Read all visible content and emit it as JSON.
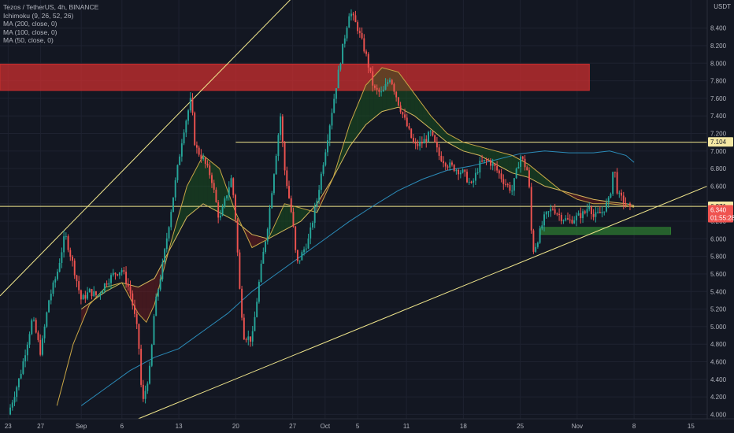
{
  "legend": {
    "symbol": "Tezos / TetherUS, 4h, BINANCE",
    "ichimoku": "Ichimoku (9, 26, 52, 26)",
    "ma200": "MA (200, close, 0)",
    "ma100": "MA (100, close, 0)",
    "ma50": "MA (50, close, 0)"
  },
  "currency": "USDT",
  "colors": {
    "background": "#131722",
    "up": "#26a69a",
    "down": "#ef5350",
    "resistance_zone": "#d32f2f",
    "support_zone": "#2e7d32",
    "trendline": "#f0e68c",
    "ma_blue": "#2b8bb8",
    "ma_gold": "#d4b85c"
  },
  "chart_data": {
    "type": "candlestick",
    "ylim": [
      3.95,
      8.72
    ],
    "y_ticks": [
      "8.400",
      "8.200",
      "8.000",
      "7.800",
      "7.600",
      "7.400",
      "7.200",
      "7.000",
      "6.800",
      "6.600",
      "6.400",
      "6.200",
      "6.000",
      "5.800",
      "5.600",
      "5.400",
      "5.200",
      "5.000",
      "4.800",
      "4.600",
      "4.400",
      "4.200",
      "4.000"
    ],
    "x_tick_labels": [
      {
        "label": "23",
        "t": 0
      },
      {
        "label": "27",
        "t": 4
      },
      {
        "label": "Sep",
        "t": 9
      },
      {
        "label": "6",
        "t": 14
      },
      {
        "label": "13",
        "t": 21
      },
      {
        "label": "20",
        "t": 28
      },
      {
        "label": "27",
        "t": 35
      },
      {
        "label": "Oct",
        "t": 39
      },
      {
        "label": "5",
        "t": 43
      },
      {
        "label": "11",
        "t": 49
      },
      {
        "label": "18",
        "t": 56
      },
      {
        "label": "25",
        "t": 63
      },
      {
        "label": "Nov",
        "t": 70
      },
      {
        "label": "8",
        "t": 77
      },
      {
        "label": "15",
        "t": 84
      }
    ],
    "close_path": [
      [
        0,
        4.0
      ],
      [
        1.5,
        4.45
      ],
      [
        3,
        5.1
      ],
      [
        4,
        4.7
      ],
      [
        5,
        5.3
      ],
      [
        6,
        5.6
      ],
      [
        7,
        6.05
      ],
      [
        8,
        5.7
      ],
      [
        9,
        5.3
      ],
      [
        10,
        5.4
      ],
      [
        11,
        5.35
      ],
      [
        12,
        5.5
      ],
      [
        13,
        5.6
      ],
      [
        14,
        5.65
      ],
      [
        15,
        5.4
      ],
      [
        16,
        4.9
      ],
      [
        16.5,
        4.1
      ],
      [
        17.5,
        4.55
      ],
      [
        18,
        5.2
      ],
      [
        19,
        5.7
      ],
      [
        20,
        6.3
      ],
      [
        21,
        6.9
      ],
      [
        21.5,
        7.2
      ],
      [
        22.5,
        7.6
      ],
      [
        23,
        7.05
      ],
      [
        24,
        6.9
      ],
      [
        25,
        6.7
      ],
      [
        26,
        6.2
      ],
      [
        27,
        6.55
      ],
      [
        27.5,
        6.7
      ],
      [
        28,
        6.2
      ],
      [
        28.5,
        5.4
      ],
      [
        29,
        4.9
      ],
      [
        30,
        4.85
      ],
      [
        31,
        5.6
      ],
      [
        32,
        6.2
      ],
      [
        33,
        7.0
      ],
      [
        33.5,
        7.4
      ],
      [
        34,
        6.8
      ],
      [
        34.5,
        6.5
      ],
      [
        35,
        6.2
      ],
      [
        35.5,
        5.7
      ],
      [
        36,
        5.8
      ],
      [
        37,
        6.0
      ],
      [
        38,
        6.45
      ],
      [
        39,
        7.0
      ],
      [
        40,
        7.55
      ],
      [
        41,
        8.1
      ],
      [
        42,
        8.6
      ],
      [
        43,
        8.4
      ],
      [
        44,
        8.1
      ],
      [
        45,
        7.7
      ],
      [
        46,
        7.65
      ],
      [
        47,
        7.85
      ],
      [
        48,
        7.55
      ],
      [
        49,
        7.3
      ],
      [
        50,
        7.05
      ],
      [
        51,
        7.1
      ],
      [
        52,
        7.2
      ],
      [
        53,
        6.95
      ],
      [
        54,
        6.85
      ],
      [
        55,
        6.8
      ],
      [
        56,
        6.75
      ],
      [
        57,
        6.6
      ],
      [
        58,
        6.85
      ],
      [
        59,
        6.9
      ],
      [
        60,
        6.8
      ],
      [
        61,
        6.65
      ],
      [
        62,
        6.55
      ],
      [
        63,
        6.95
      ],
      [
        64,
        6.75
      ],
      [
        64.5,
        5.85
      ],
      [
        65,
        5.95
      ],
      [
        66,
        6.25
      ],
      [
        67,
        6.35
      ],
      [
        68,
        6.25
      ],
      [
        69,
        6.2
      ],
      [
        70,
        6.25
      ],
      [
        71,
        6.3
      ],
      [
        71.5,
        6.4
      ],
      [
        72,
        6.25
      ],
      [
        73,
        6.3
      ],
      [
        74,
        6.45
      ],
      [
        74.5,
        6.85
      ],
      [
        75,
        6.5
      ],
      [
        76,
        6.4
      ],
      [
        76.5,
        6.34
      ]
    ],
    "moving_averages": [
      {
        "name": "MA (200, close, 0)",
        "color": "#2b8bb8",
        "points": [
          [
            9,
            4.1
          ],
          [
            12,
            4.3
          ],
          [
            15,
            4.5
          ],
          [
            18,
            4.65
          ],
          [
            21,
            4.75
          ],
          [
            24,
            4.95
          ],
          [
            27,
            5.15
          ],
          [
            30,
            5.4
          ],
          [
            33,
            5.6
          ],
          [
            36,
            5.8
          ],
          [
            39,
            6.0
          ],
          [
            42,
            6.2
          ],
          [
            45,
            6.38
          ],
          [
            48,
            6.55
          ],
          [
            51,
            6.68
          ],
          [
            54,
            6.78
          ],
          [
            57,
            6.83
          ],
          [
            60,
            6.9
          ],
          [
            63,
            6.97
          ],
          [
            66,
            7.0
          ],
          [
            69,
            6.98
          ],
          [
            72,
            6.98
          ],
          [
            74,
            7.0
          ],
          [
            76,
            6.95
          ],
          [
            77,
            6.87
          ]
        ]
      },
      {
        "name": "MA (100, close, 0)",
        "color": "#d4b85c",
        "points": [
          [
            9,
            5.2
          ],
          [
            12,
            5.4
          ],
          [
            14,
            5.5
          ],
          [
            16,
            5.45
          ],
          [
            18,
            5.55
          ],
          [
            20,
            5.9
          ],
          [
            22,
            6.25
          ],
          [
            24,
            6.4
          ],
          [
            26,
            6.3
          ],
          [
            28,
            6.2
          ],
          [
            30,
            6.05
          ],
          [
            32,
            6.0
          ],
          [
            34,
            6.1
          ],
          [
            36,
            6.2
          ],
          [
            38,
            6.4
          ],
          [
            40,
            6.7
          ],
          [
            42,
            7.05
          ],
          [
            44,
            7.3
          ],
          [
            46,
            7.45
          ],
          [
            48,
            7.5
          ],
          [
            50,
            7.4
          ],
          [
            52,
            7.25
          ],
          [
            54,
            7.1
          ],
          [
            56,
            7.0
          ],
          [
            58,
            6.95
          ],
          [
            60,
            6.85
          ],
          [
            62,
            6.75
          ],
          [
            64,
            6.7
          ],
          [
            66,
            6.6
          ],
          [
            68,
            6.55
          ],
          [
            70,
            6.5
          ],
          [
            72,
            6.45
          ],
          [
            74,
            6.42
          ],
          [
            76,
            6.4
          ],
          [
            77,
            6.38
          ]
        ]
      },
      {
        "name": "MA (50, close, 0)",
        "color": "#c9a646",
        "points": [
          [
            6,
            4.1
          ],
          [
            8,
            4.8
          ],
          [
            10,
            5.25
          ],
          [
            12,
            5.45
          ],
          [
            14,
            5.5
          ],
          [
            16,
            5.15
          ],
          [
            17,
            5.05
          ],
          [
            18,
            5.25
          ],
          [
            20,
            5.95
          ],
          [
            22,
            6.6
          ],
          [
            24,
            6.95
          ],
          [
            26,
            6.8
          ],
          [
            28,
            6.3
          ],
          [
            30,
            5.9
          ],
          [
            32,
            6.0
          ],
          [
            34,
            6.4
          ],
          [
            36,
            6.35
          ],
          [
            38,
            6.3
          ],
          [
            40,
            6.7
          ],
          [
            42,
            7.3
          ],
          [
            44,
            7.75
          ],
          [
            46,
            7.95
          ],
          [
            48,
            7.9
          ],
          [
            50,
            7.65
          ],
          [
            52,
            7.4
          ],
          [
            54,
            7.2
          ],
          [
            56,
            7.1
          ],
          [
            58,
            7.05
          ],
          [
            60,
            7.0
          ],
          [
            62,
            6.95
          ],
          [
            64,
            6.85
          ],
          [
            66,
            6.7
          ],
          [
            68,
            6.55
          ],
          [
            70,
            6.45
          ],
          [
            72,
            6.4
          ],
          [
            74,
            6.4
          ],
          [
            76,
            6.38
          ],
          [
            77,
            6.36
          ]
        ]
      }
    ],
    "levels": [
      {
        "label": "7.104",
        "price": 7.104,
        "box": "#f5e8a3",
        "text": "#131722"
      },
      {
        "label": "6.371",
        "price": 6.371,
        "box": "#f5e8a3",
        "text": "#131722"
      }
    ],
    "last_price": {
      "price": "6.340",
      "countdown": "01:55:28",
      "color": "#ef5350"
    },
    "zones": [
      {
        "name": "resistance",
        "y_top": 7.99,
        "y_bottom": 7.69,
        "t_start": -1,
        "t_end": 71.5
      },
      {
        "name": "support",
        "y_top": 6.13,
        "y_bottom": 6.05,
        "t_start": 65.5,
        "t_end": 81.5
      }
    ],
    "trendlines": [
      {
        "t1": -1,
        "p1": 5.35,
        "t2": 35,
        "p2": 8.75
      },
      {
        "t1": 16,
        "p1": 3.95,
        "t2": 86,
        "p2": 6.6
      },
      {
        "t1": -1,
        "p1": 6.37,
        "t2": 86,
        "p2": 6.37
      },
      {
        "t1": 28,
        "p1": 7.1,
        "t2": 86,
        "p2": 7.1
      }
    ]
  }
}
